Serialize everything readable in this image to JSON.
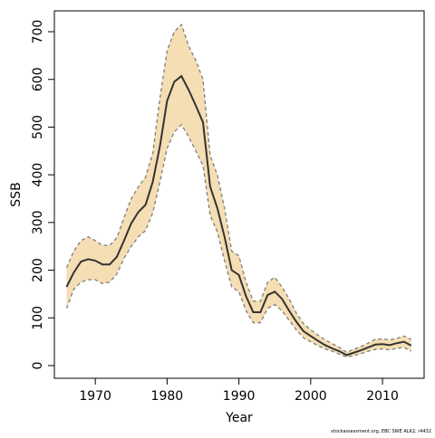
{
  "chart_data": {
    "type": "line",
    "xlabel": "Year",
    "ylabel": "SSB",
    "footnote": "stockassessment.org, EBC SWE ALK2, r4432",
    "x": [
      1966,
      1967,
      1968,
      1969,
      1970,
      1971,
      1972,
      1973,
      1974,
      1975,
      1976,
      1977,
      1978,
      1979,
      1980,
      1981,
      1982,
      1983,
      1984,
      1985,
      1986,
      1987,
      1988,
      1989,
      1990,
      1991,
      1992,
      1993,
      1994,
      1995,
      1996,
      1997,
      1998,
      1999,
      2000,
      2001,
      2002,
      2003,
      2004,
      2005,
      2006,
      2007,
      2008,
      2009,
      2010,
      2011,
      2012,
      2013,
      2014
    ],
    "values": [
      165,
      195,
      218,
      223,
      220,
      212,
      212,
      228,
      262,
      298,
      322,
      337,
      385,
      460,
      555,
      595,
      607,
      578,
      545,
      510,
      375,
      330,
      270,
      200,
      190,
      145,
      112,
      112,
      148,
      155,
      140,
      115,
      92,
      72,
      62,
      52,
      43,
      36,
      30,
      22,
      27,
      32,
      38,
      44,
      45,
      43,
      47,
      50,
      42
    ],
    "upper": [
      205,
      240,
      262,
      270,
      262,
      252,
      252,
      268,
      310,
      350,
      375,
      395,
      445,
      560,
      660,
      700,
      715,
      670,
      640,
      600,
      440,
      400,
      330,
      240,
      230,
      175,
      135,
      135,
      175,
      185,
      165,
      140,
      110,
      88,
      75,
      64,
      54,
      46,
      38,
      28,
      34,
      40,
      47,
      55,
      56,
      54,
      57,
      62,
      55
    ],
    "lower": [
      120,
      160,
      175,
      180,
      180,
      172,
      175,
      192,
      225,
      250,
      270,
      283,
      320,
      385,
      455,
      490,
      505,
      480,
      450,
      420,
      315,
      280,
      220,
      165,
      155,
      115,
      90,
      90,
      120,
      128,
      115,
      95,
      75,
      58,
      50,
      42,
      35,
      30,
      24,
      18,
      21,
      25,
      30,
      34,
      35,
      33,
      36,
      38,
      30
    ],
    "color": "#333333",
    "band_color": "#f5deb3",
    "bound_color": "#7f7f7f",
    "xlim": [
      1964.3,
      2015.8
    ],
    "ylim": [
      -26.6,
      743.7
    ],
    "xticks": [
      1970,
      1980,
      1990,
      2000,
      2010
    ],
    "yticks": [
      0,
      100,
      200,
      300,
      400,
      500,
      600,
      700
    ]
  }
}
